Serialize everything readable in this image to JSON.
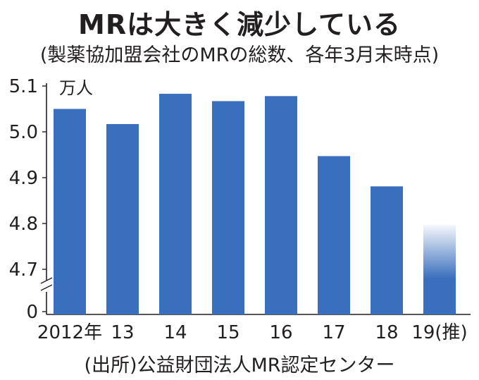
{
  "title": "MRは大きく減少している",
  "subtitle": "(製薬協加盟会社のMRの総数、各年3月末時点)",
  "source": "(出所)公益財団法人MR認定センター",
  "chart_data": {
    "type": "bar",
    "unit": "万人",
    "categories": [
      "2012年",
      "13",
      "14",
      "15",
      "16",
      "17",
      "18",
      "19(推)"
    ],
    "values": [
      5.05,
      5.017,
      5.083,
      5.067,
      5.078,
      4.947,
      4.881,
      4.797
    ],
    "estimated": [
      false,
      false,
      false,
      false,
      false,
      false,
      false,
      true
    ],
    "yticks": [
      "5.1",
      "5.0",
      "4.9",
      "4.8",
      "4.7",
      "0"
    ],
    "ylim": [
      4.7,
      5.1
    ],
    "axis_break": true,
    "bar_color": "#3a6fbd",
    "grid": false
  }
}
